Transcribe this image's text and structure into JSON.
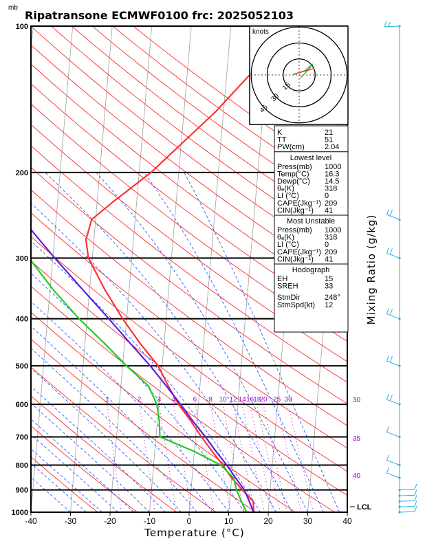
{
  "header": {
    "units_mb": "mb",
    "title": "Ripatransone ECMWF0100 frc: 2025052103"
  },
  "axes": {
    "xlabel": "Temperature (°C)",
    "right_label": "Mixing Ratio (g/kg)",
    "lcl_label": "LCL"
  },
  "hodograph": {
    "units": "knots",
    "ring_labels": [
      "15",
      "30",
      "45"
    ]
  },
  "table": {
    "indices": [
      {
        "label": "K",
        "value": "21"
      },
      {
        "label": "TT",
        "value": "51"
      },
      {
        "label": "PW(cm)",
        "value": "2.04"
      }
    ],
    "lowest_header": "Lowest level",
    "lowest": [
      {
        "label": "Press(mb)",
        "value": "1000"
      },
      {
        "label": "Temp(°C)",
        "value": "16.3"
      },
      {
        "label": "Dewp(°C)",
        "value": "14.5"
      },
      {
        "label": "θₑ(K)",
        "value": "318"
      },
      {
        "label": "LI (°C)",
        "value": "0"
      },
      {
        "label": "CAPE(Jkg⁻¹)",
        "value": "209"
      },
      {
        "label": "CIN(Jkg⁻¹)",
        "value": "41"
      }
    ],
    "unstable_header": "Most Unstable",
    "unstable": [
      {
        "label": "Press(mb)",
        "value": "1000"
      },
      {
        "label": "θₑ(K)",
        "value": "318"
      },
      {
        "label": "LI (°C)",
        "value": "0"
      },
      {
        "label": "CAPE(Jkg⁻¹)",
        "value": "209"
      },
      {
        "label": "CIN(Jkg⁻¹)",
        "value": "41"
      }
    ],
    "hodo_header": "Hodograph",
    "hodo": [
      {
        "label": "EH",
        "value": "15"
      },
      {
        "label": "SREH",
        "value": "33"
      }
    ],
    "storm": [
      {
        "label": "StmDir",
        "value": "248°"
      },
      {
        "label": "StmSpd(kt)",
        "value": "12"
      }
    ]
  },
  "chart_data": {
    "type": "line",
    "title": "Ripatransone ECMWF0100 frc: 2025052103",
    "xlabel": "Temperature (°C)",
    "ylabel": "mb",
    "x_ticks": [
      -40,
      -30,
      -20,
      -10,
      0,
      10,
      20,
      30,
      40
    ],
    "p_ticks": [
      100,
      200,
      300,
      400,
      500,
      600,
      700,
      800,
      900,
      1000
    ],
    "xlim": [
      -40,
      40
    ],
    "plim": [
      1000,
      100
    ],
    "mixing_ratio_labels": [
      "1",
      "2",
      "3",
      "4",
      "6",
      "8",
      "10",
      "12",
      "14",
      "16",
      "18",
      "20",
      "25",
      "30"
    ],
    "theta_e_labels": [
      "30",
      "35",
      "40"
    ],
    "colors": {
      "temperature": "#ff3030",
      "dewpoint": "#22cc22",
      "parcel": "#5a1ee0",
      "isotherm": "#a8a8a8",
      "dry_adiabat": "#ff2a2a",
      "moist_adiabat": "#2b5cff",
      "mixing_ratio": "#b400b4",
      "wind": "#2aaee0"
    },
    "series": [
      {
        "points": [
          [
            1000,
            16.3
          ],
          [
            950,
            16
          ],
          [
            900,
            13
          ],
          [
            850,
            10
          ],
          [
            800,
            7.5
          ],
          [
            750,
            4.5
          ],
          [
            700,
            1.5
          ],
          [
            650,
            -1.5
          ],
          [
            600,
            -5
          ],
          [
            550,
            -8
          ],
          [
            500,
            -11
          ],
          [
            450,
            -16
          ],
          [
            400,
            -21
          ],
          [
            350,
            -26
          ],
          [
            300,
            -31
          ],
          [
            275,
            -32
          ],
          [
            250,
            -31
          ],
          [
            230,
            -26
          ],
          [
            200,
            -17
          ],
          [
            150,
            -2
          ],
          [
            120,
            8
          ],
          [
            100,
            15
          ]
        ]
      },
      {
        "points": [
          [
            1000,
            14.5
          ],
          [
            950,
            13
          ],
          [
            900,
            11.5
          ],
          [
            850,
            10.5
          ],
          [
            800,
            7
          ],
          [
            750,
            0
          ],
          [
            700,
            -9
          ],
          [
            650,
            -9.5
          ],
          [
            600,
            -10.5
          ],
          [
            550,
            -13
          ],
          [
            500,
            -19
          ],
          [
            450,
            -25
          ],
          [
            400,
            -32
          ],
          [
            350,
            -39
          ],
          [
            300,
            -46
          ],
          [
            275,
            -51
          ],
          [
            250,
            -57
          ],
          [
            230,
            -61
          ],
          [
            200,
            -67
          ],
          [
            150,
            -73
          ],
          [
            120,
            -76
          ],
          [
            100,
            -79
          ]
        ]
      },
      {
        "points": [
          [
            1000,
            16.3
          ],
          [
            950,
            15
          ],
          [
            900,
            13.5
          ],
          [
            850,
            11
          ],
          [
            800,
            8.5
          ],
          [
            750,
            5.5
          ],
          [
            700,
            2.5
          ],
          [
            650,
            -1
          ],
          [
            600,
            -4.5
          ],
          [
            550,
            -8.5
          ],
          [
            500,
            -13
          ],
          [
            450,
            -18.5
          ],
          [
            400,
            -24.5
          ],
          [
            350,
            -31.5
          ],
          [
            300,
            -39.5
          ],
          [
            250,
            -48.5
          ],
          [
            200,
            -59
          ],
          [
            150,
            -72
          ],
          [
            120,
            -80
          ],
          [
            100,
            -86
          ]
        ]
      }
    ],
    "wind_levels": [
      1000,
      975,
      950,
      925,
      900,
      850,
      800,
      700,
      600,
      500,
      400,
      300,
      250,
      100
    ]
  }
}
